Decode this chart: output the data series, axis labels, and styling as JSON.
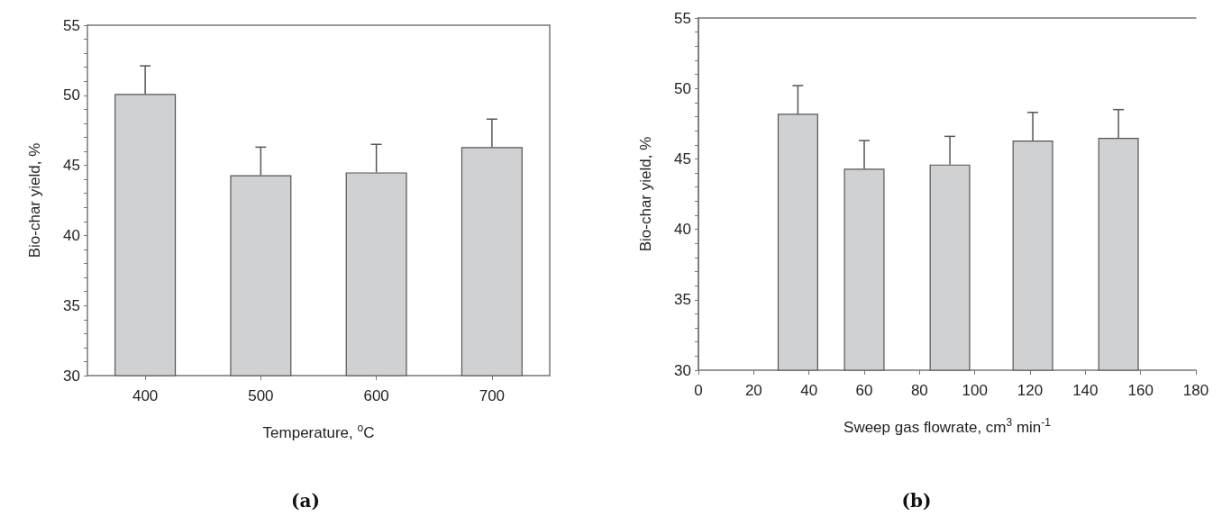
{
  "chart_data": [
    {
      "type": "bar",
      "categories": [
        "400",
        "500",
        "600",
        "700"
      ],
      "values": [
        50.1,
        44.3,
        44.5,
        46.3
      ],
      "errors": [
        [
          50.1,
          52.1
        ],
        [
          44.3,
          46.3
        ],
        [
          44.5,
          46.5
        ],
        [
          46.3,
          48.3
        ]
      ],
      "color": "#d0d1d3",
      "xlabel": "Temperature, $^{o}$C",
      "ylabel": "Bio-char yield, %",
      "ylim": [
        30,
        55
      ],
      "yticks": [
        30,
        35,
        40,
        45,
        50,
        55
      ],
      "grid": false,
      "annotations": [
        "(a)"
      ]
    },
    {
      "type": "bar",
      "x": [
        36,
        60,
        91,
        121,
        152
      ],
      "values": [
        48.2,
        44.3,
        44.6,
        46.3,
        46.5
      ],
      "errors": [
        [
          48.2,
          50.2
        ],
        [
          44.3,
          46.3
        ],
        [
          44.6,
          46.6
        ],
        [
          46.3,
          48.3
        ],
        [
          46.5,
          48.5
        ]
      ],
      "color": "#d0d1d3",
      "xlabel": "Sweep gas flowrate, cm$^{3}$ min$^{-1}$",
      "ylabel": "Bio-char yield, %",
      "xlim": [
        0,
        180
      ],
      "xticks": [
        0,
        20,
        40,
        60,
        80,
        100,
        120,
        140,
        160,
        180
      ],
      "ylim": [
        30,
        55
      ],
      "yticks": [
        30,
        35,
        40,
        45,
        50,
        55
      ],
      "grid": false,
      "annotations": [
        "(b)"
      ]
    }
  ]
}
